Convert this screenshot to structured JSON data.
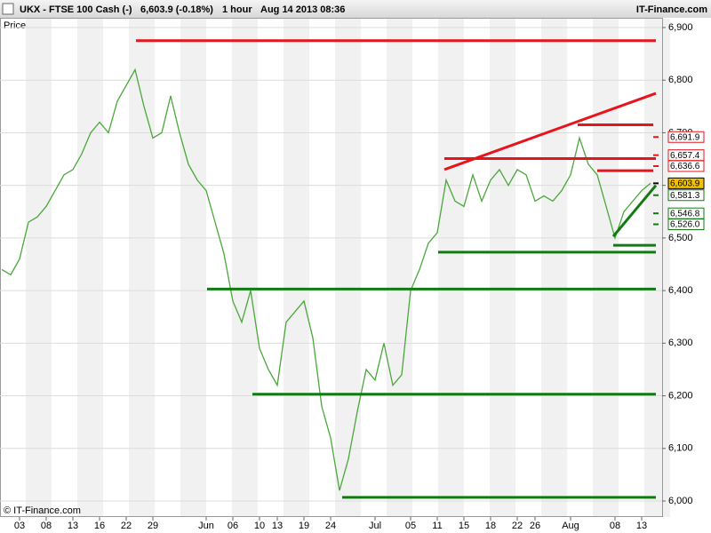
{
  "header": {
    "symbol": "UKX - FTSE 100 Cash (-)",
    "quote": "6,603.9 (-0.18%)",
    "interval": "1 hour",
    "timestamp": "Aug 14 2013 08:36",
    "brand": "IT-Finance.com"
  },
  "footer": {
    "copyright": "© IT-Finance.com"
  },
  "chart_data": {
    "type": "line",
    "y_label": "Price",
    "color": "#4aa83a",
    "categories": [
      null,
      null,
      "03",
      null,
      null,
      "08",
      null,
      null,
      "13",
      null,
      null,
      "16",
      null,
      null,
      "22",
      null,
      null,
      "29",
      null,
      null,
      null,
      null,
      null,
      "Jun",
      null,
      null,
      "06",
      null,
      null,
      "10",
      null,
      "13",
      null,
      null,
      "19",
      null,
      null,
      "24",
      null,
      null,
      null,
      null,
      "Jul",
      null,
      null,
      null,
      "05",
      null,
      null,
      "11",
      null,
      null,
      "15",
      null,
      null,
      "18",
      null,
      null,
      "22",
      null,
      "26",
      null,
      null,
      null,
      "Aug",
      null,
      null,
      null,
      null,
      "08",
      null,
      null,
      "13",
      null
    ],
    "values": [
      6440,
      6430,
      6460,
      6530,
      6540,
      6560,
      6590,
      6620,
      6630,
      6660,
      6700,
      6720,
      6700,
      6760,
      6790,
      6820,
      6750,
      6690,
      6700,
      6770,
      6700,
      6640,
      6610,
      6590,
      6530,
      6470,
      6380,
      6340,
      6400,
      6290,
      6250,
      6220,
      6340,
      6360,
      6380,
      6310,
      6180,
      6120,
      6020,
      6080,
      6170,
      6250,
      6230,
      6300,
      6220,
      6240,
      6400,
      6440,
      6490,
      6510,
      6610,
      6570,
      6560,
      6620,
      6570,
      6610,
      6630,
      6600,
      6630,
      6620,
      6570,
      6580,
      6570,
      6590,
      6620,
      6690,
      6640,
      6620,
      6560,
      6500,
      6550,
      6570,
      6590,
      6604
    ],
    "ylim": [
      6000,
      6900
    ],
    "yticks": [
      {
        "value": 6000,
        "label": "6,000"
      },
      {
        "value": 6100,
        "label": "6,100"
      },
      {
        "value": 6200,
        "label": "6,200"
      },
      {
        "value": 6300,
        "label": "6,300"
      },
      {
        "value": 6400,
        "label": "6,400"
      },
      {
        "value": 6500,
        "label": "6,500"
      },
      {
        "value": 6600,
        "label": "6,600"
      },
      {
        "value": 6700,
        "label": "6,700"
      },
      {
        "value": 6800,
        "label": "6,800"
      },
      {
        "value": 6900,
        "label": "6,900"
      }
    ],
    "grid": true,
    "levels": [
      {
        "value": 6875,
        "start": 15.1,
        "end": 73.6,
        "color": "#e8141c"
      },
      {
        "value": 6715,
        "start": 64.8,
        "end": 73.3,
        "color": "#e8141c"
      },
      {
        "value": 6651,
        "start": 49.8,
        "end": 73.6,
        "color": "#e8141c"
      },
      {
        "value": 6628,
        "start": 67,
        "end": 73.3,
        "color": "#e8141c"
      },
      {
        "value": 6486,
        "start": 68.8,
        "end": 73.6,
        "color": "#117a11"
      },
      {
        "value": 6473,
        "start": 49.1,
        "end": 73.6,
        "color": "#117a11"
      },
      {
        "value": 6403,
        "start": 23.1,
        "end": 73.6,
        "color": "#117a11"
      },
      {
        "value": 6203,
        "start": 28.2,
        "end": 73.6,
        "color": "#117a11"
      },
      {
        "value": 6007,
        "start": 38.3,
        "end": 73.6,
        "color": "#117a11"
      }
    ],
    "trendlines": [
      {
        "x1": 49.8,
        "y1": 6630,
        "x2": 73.6,
        "y2": 6775,
        "color": "#e8141c"
      },
      {
        "x1": 68.8,
        "y1": 6503,
        "x2": 73.6,
        "y2": 6600,
        "color": "#117a11"
      }
    ],
    "price_tags": [
      {
        "value": 6691.9,
        "label": "6,691.9",
        "color": "#e8141c"
      },
      {
        "value": 6657.4,
        "label": "6,657.4",
        "color": "#e8141c"
      },
      {
        "value": 6636.6,
        "label": "6,636.6",
        "color": "#e8141c"
      },
      {
        "value": 6603.9,
        "label": "6,603.9",
        "color": "#000000",
        "fill": "#f2c200"
      },
      {
        "value": 6581.3,
        "label": "6,581.3",
        "color": "#117a11"
      },
      {
        "value": 6546.8,
        "label": "6,546.8",
        "color": "#117a11"
      },
      {
        "value": 6526.0,
        "label": "6,526.0",
        "color": "#117a11"
      }
    ]
  }
}
